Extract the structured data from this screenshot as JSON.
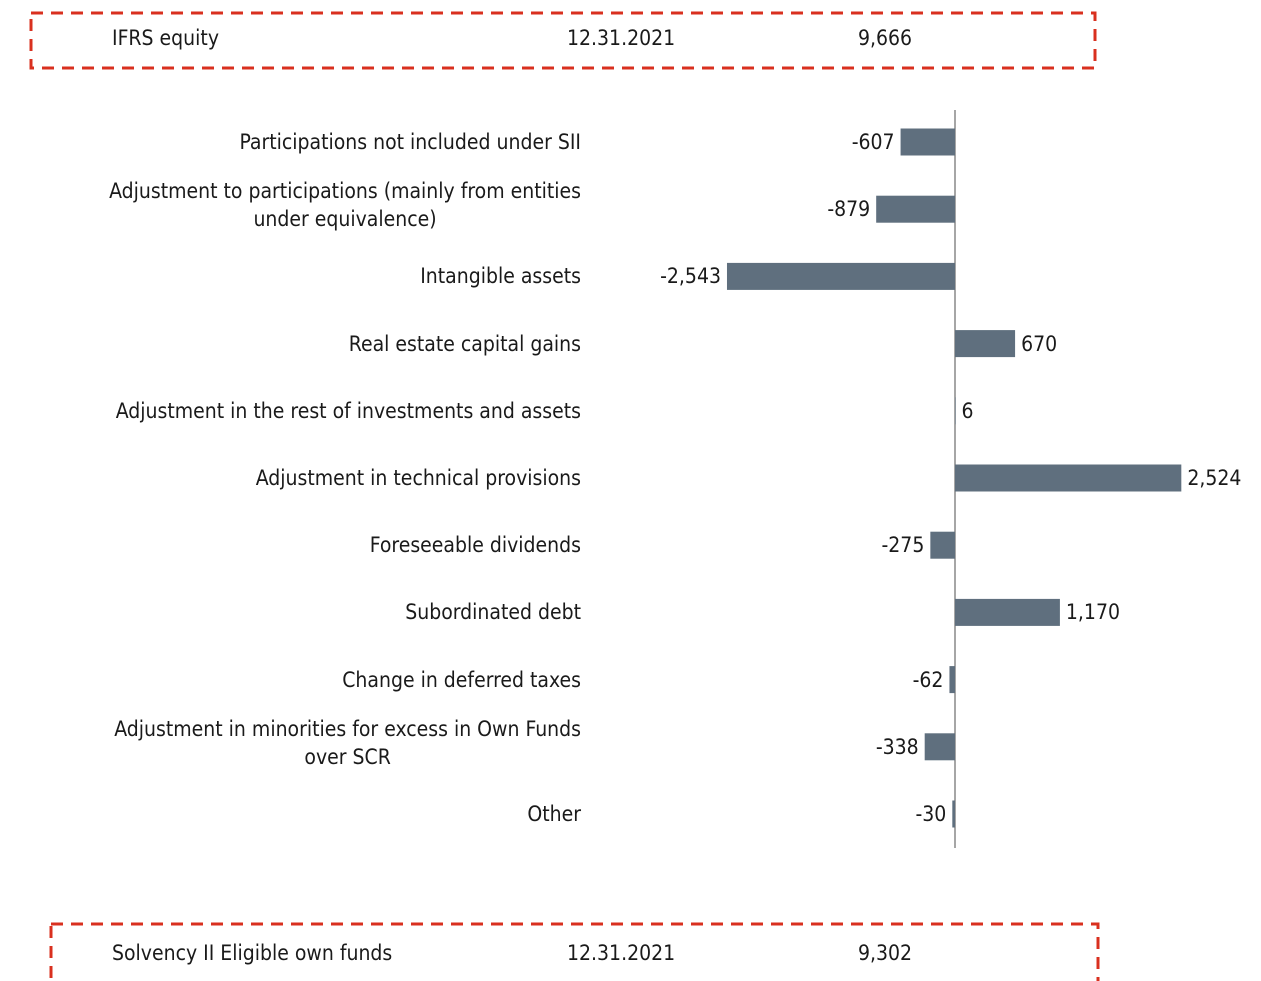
{
  "chart_data": {
    "type": "bar",
    "orientation": "horizontal",
    "start": {
      "label": "IFRS equity",
      "date": "12.31.2021",
      "amount": "9,666"
    },
    "end": {
      "label": "Solvency II Eligible own funds",
      "date": "12.31.2021",
      "amount": "9,302"
    },
    "categories": [
      "Participations not included under SII",
      "Adjustment to participations (mainly from entities\nunder equivalence)",
      "Intangible assets",
      "Real estate capital gains",
      "Adjustment in the rest of investments and assets",
      "Adjustment in technical provisions",
      "Foreseeable dividends",
      "Subordinated debt",
      "Change in deferred taxes",
      "Adjustment in minorities for excess in Own Funds\nover SCR",
      "Other"
    ],
    "values": [
      -607,
      -879,
      -2543,
      670,
      6,
      2524,
      -275,
      1170,
      -62,
      -338,
      -30
    ],
    "value_labels": [
      "-607",
      "-879",
      "-2,543",
      "670",
      "6",
      "2,524",
      "-275",
      "1,170",
      "-62",
      "-338",
      "-30"
    ],
    "color": "#5f6f7e",
    "xlim": [
      -3000,
      3000
    ]
  }
}
